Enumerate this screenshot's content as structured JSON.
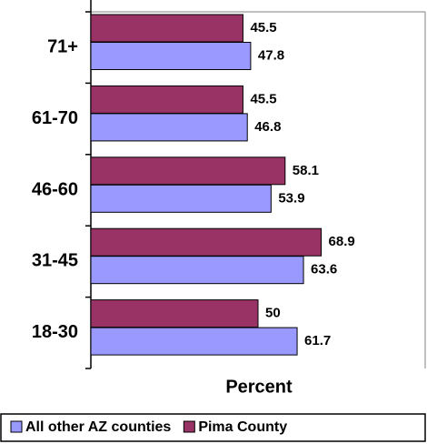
{
  "chart_data": {
    "type": "bar",
    "orientation": "horizontal",
    "x_label": "Percent",
    "categories": [
      "71+",
      "61-70",
      "46-60",
      "31-45",
      "18-30"
    ],
    "series": [
      {
        "name": "All other AZ counties",
        "color": "#9999ff",
        "values": [
          47.8,
          46.8,
          53.9,
          63.6,
          61.7
        ]
      },
      {
        "name": "Pima County",
        "color": "#993366",
        "values": [
          45.5,
          45.5,
          58.1,
          68.9,
          50
        ]
      }
    ],
    "xlim": [
      0,
      100
    ],
    "legend": "bottom"
  }
}
